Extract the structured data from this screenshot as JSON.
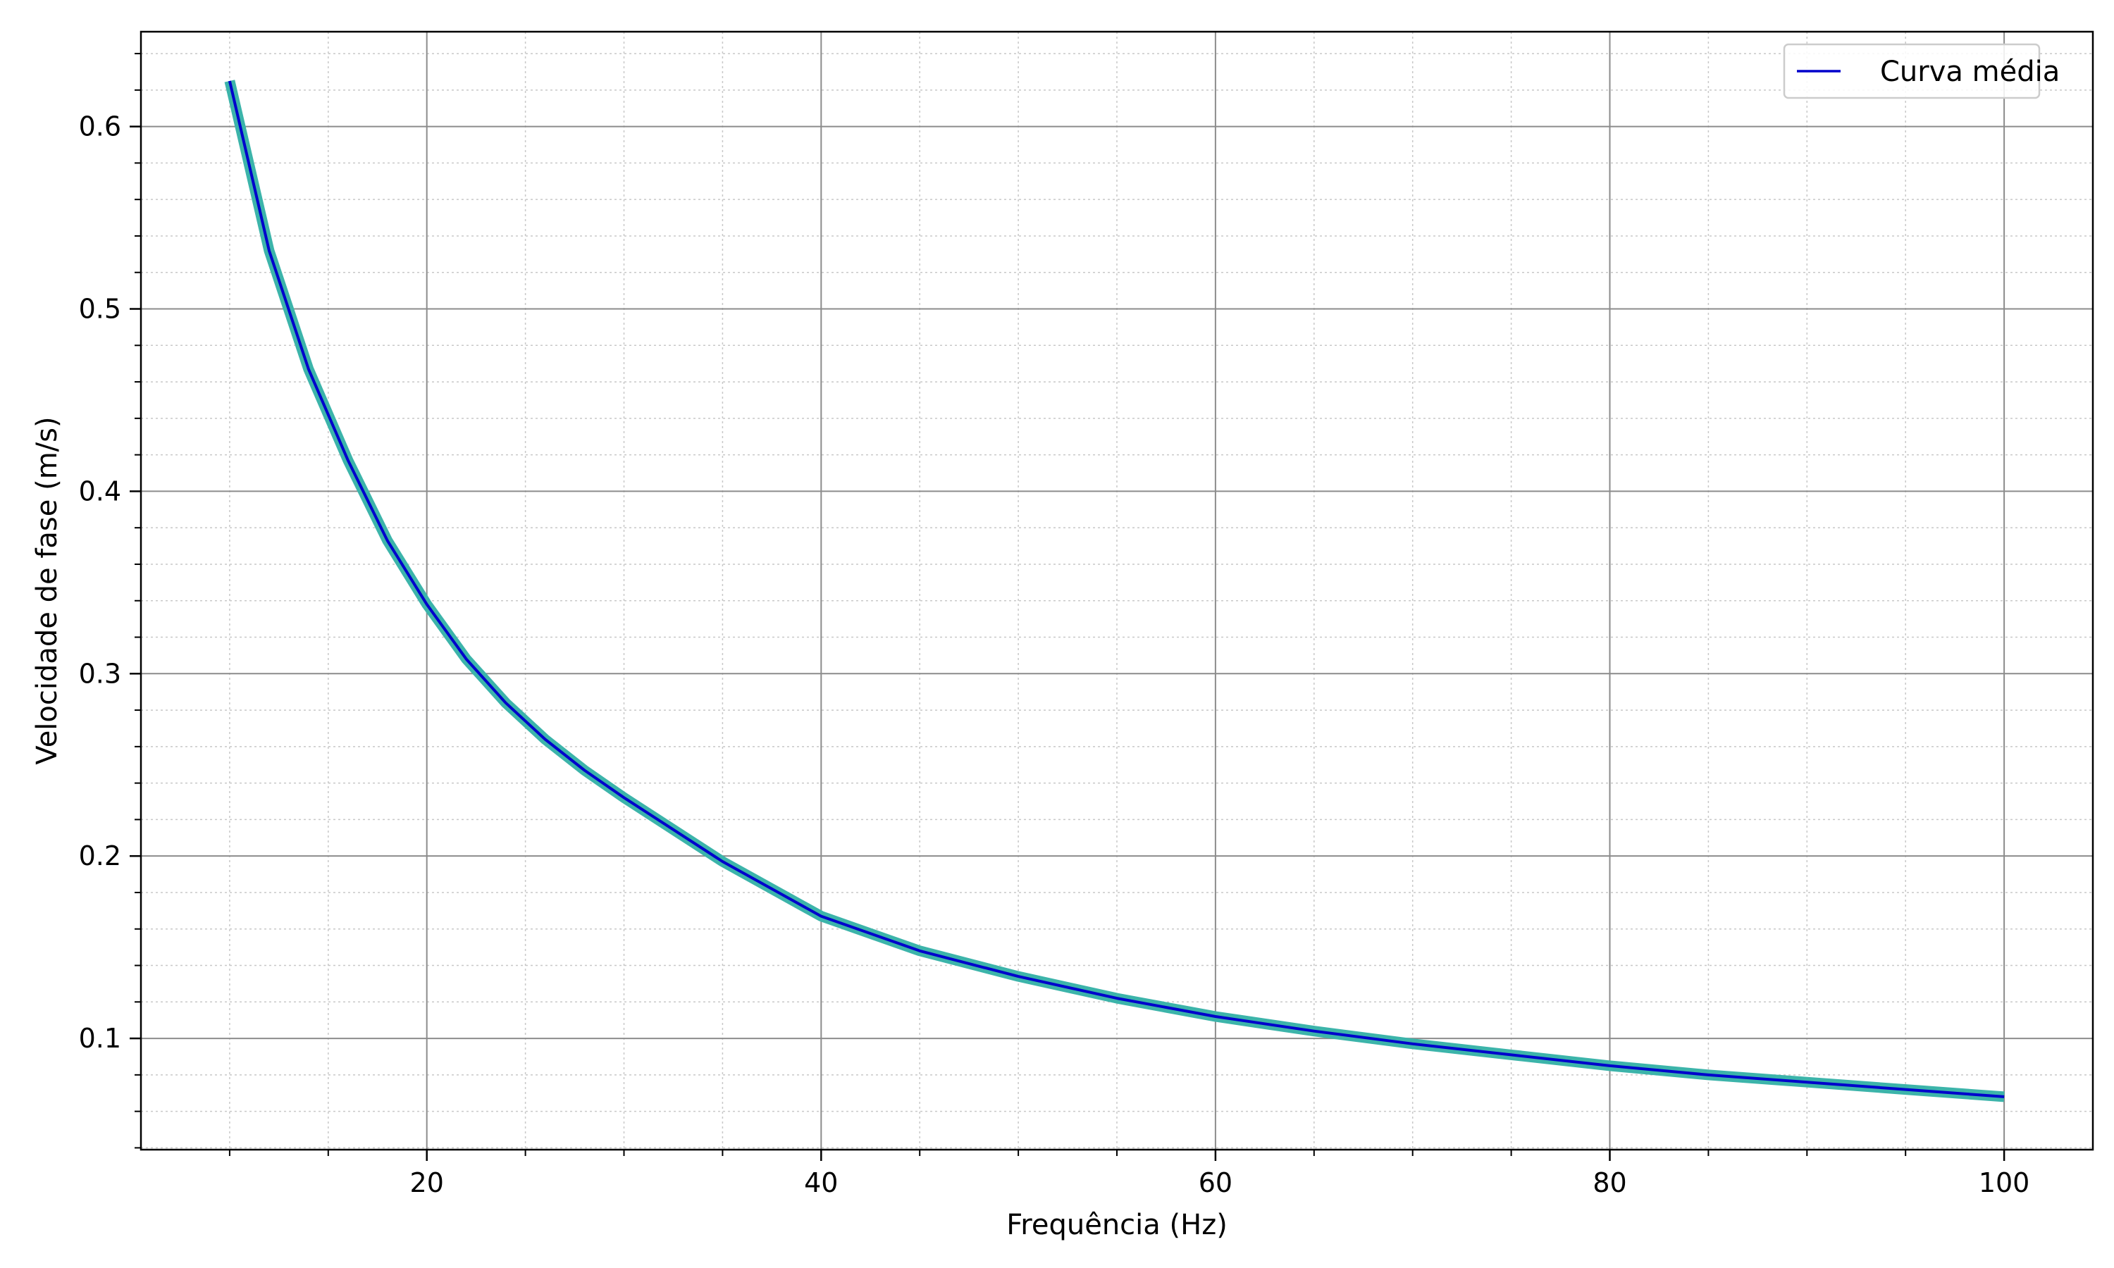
{
  "chart_data": {
    "type": "line",
    "title": "",
    "xlabel": "Frequência (Hz)",
    "ylabel": "Velocidade de fase (m/s)",
    "xlim": [
      5.5,
      104.5
    ],
    "ylim": [
      0.039,
      0.652
    ],
    "x_ticks": [
      20,
      40,
      60,
      80,
      100
    ],
    "x_tick_labels": [
      "20",
      "40",
      "60",
      "80",
      "100"
    ],
    "y_ticks": [
      0.1,
      0.2,
      0.3,
      0.4,
      0.5,
      0.6
    ],
    "y_tick_labels": [
      "0.1",
      "0.2",
      "0.3",
      "0.4",
      "0.5",
      "0.6"
    ],
    "x_minor_step": 5,
    "y_minor_step": 0.02,
    "grid": {
      "major": true,
      "minor": true
    },
    "legend": {
      "placement": "top-right",
      "entries": [
        "Curva média"
      ]
    },
    "band": {
      "color": "#3cb4aa",
      "x": [
        10,
        12,
        14,
        16,
        18,
        20,
        22,
        24,
        26,
        28,
        30,
        35,
        40,
        45,
        50,
        55,
        60,
        65,
        70,
        75,
        80,
        85,
        90,
        95,
        100
      ],
      "y": [
        0.625,
        0.532,
        0.467,
        0.417,
        0.373,
        0.338,
        0.308,
        0.284,
        0.264,
        0.247,
        0.232,
        0.197,
        0.167,
        0.148,
        0.134,
        0.122,
        0.112,
        0.104,
        0.097,
        0.091,
        0.085,
        0.08,
        0.076,
        0.072,
        0.068
      ]
    },
    "series": [
      {
        "name": "Curva média",
        "color": "#0000cc",
        "x": [
          10,
          12,
          14,
          16,
          18,
          20,
          22,
          24,
          26,
          28,
          30,
          35,
          40,
          45,
          50,
          55,
          60,
          65,
          70,
          75,
          80,
          85,
          90,
          95,
          100
        ],
        "y": [
          0.625,
          0.532,
          0.467,
          0.417,
          0.373,
          0.338,
          0.308,
          0.284,
          0.264,
          0.247,
          0.232,
          0.197,
          0.167,
          0.148,
          0.134,
          0.122,
          0.112,
          0.104,
          0.097,
          0.091,
          0.085,
          0.08,
          0.076,
          0.072,
          0.068
        ]
      }
    ]
  }
}
